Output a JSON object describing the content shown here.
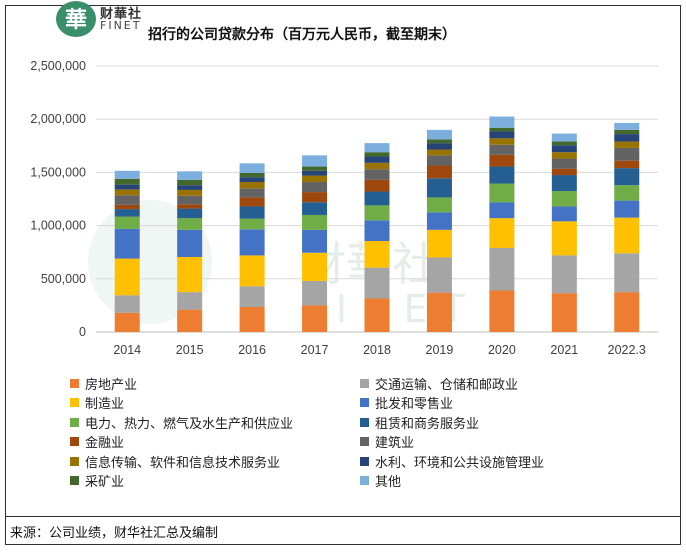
{
  "header": {
    "brand_cn": "财華社",
    "brand_en": "FINET",
    "logo_char": "華",
    "title": "招行的公司贷款分布（百万元人民币，截至期末）"
  },
  "watermark": {
    "cn": "財華社",
    "en": "FINET"
  },
  "footer": {
    "source": "来源：公司业绩，财华社汇总及编制"
  },
  "colors": {
    "series": [
      "#ED7D31",
      "#A5A5A5",
      "#FFC000",
      "#4472C4",
      "#70AD47",
      "#255E91",
      "#9E480E",
      "#636363",
      "#997300",
      "#264478",
      "#43682B",
      "#7CAFDD"
    ]
  },
  "chart_data": {
    "type": "bar",
    "stacked": true,
    "title": "招行的公司贷款分布（百万元人民币，截至期末）",
    "categories": [
      "2014",
      "2015",
      "2016",
      "2017",
      "2018",
      "2019",
      "2020",
      "2021",
      "2022.3"
    ],
    "ylim": [
      0,
      2500000
    ],
    "yticks": [
      "0",
      "500,000",
      "1,000,000",
      "1,500,000",
      "2,000,000",
      "2,500,000"
    ],
    "ytick_values": [
      0,
      500000,
      1000000,
      1500000,
      2000000,
      2500000
    ],
    "grid": true,
    "legend_position": "bottom",
    "series": [
      {
        "name": "房地产业",
        "values": [
          180000,
          210000,
          235000,
          250000,
          315000,
          370000,
          390000,
          365000,
          375000
        ]
      },
      {
        "name": "交通运输、仓储和邮政业",
        "values": [
          165000,
          165000,
          195000,
          230000,
          290000,
          330000,
          400000,
          355000,
          365000
        ]
      },
      {
        "name": "制造业",
        "values": [
          345000,
          330000,
          290000,
          265000,
          250000,
          260000,
          280000,
          320000,
          335000
        ]
      },
      {
        "name": "批发和零售业",
        "values": [
          280000,
          255000,
          245000,
          215000,
          195000,
          165000,
          150000,
          140000,
          160000
        ]
      },
      {
        "name": "电力、热力、燃气及水生产和供应业",
        "values": [
          115000,
          110000,
          100000,
          140000,
          140000,
          140000,
          175000,
          145000,
          145000
        ]
      },
      {
        "name": "租赁和商务服务业",
        "values": [
          70000,
          90000,
          115000,
          120000,
          130000,
          180000,
          160000,
          150000,
          160000
        ]
      },
      {
        "name": "金融业",
        "values": [
          40000,
          40000,
          85000,
          95000,
          110000,
          120000,
          110000,
          60000,
          70000
        ]
      },
      {
        "name": "建筑业",
        "values": [
          90000,
          80000,
          85000,
          95000,
          100000,
          95000,
          95000,
          95000,
          120000
        ]
      },
      {
        "name": "信息传输、软件和信息技术服务业",
        "values": [
          55000,
          55000,
          60000,
          60000,
          60000,
          55000,
          60000,
          60000,
          60000
        ]
      },
      {
        "name": "水利、环境和公共设施管理业",
        "values": [
          45000,
          45000,
          45000,
          45000,
          60000,
          60000,
          65000,
          65000,
          70000
        ]
      },
      {
        "name": "采矿业",
        "values": [
          55000,
          50000,
          40000,
          40000,
          40000,
          35000,
          35000,
          35000,
          40000
        ]
      },
      {
        "name": "其他",
        "values": [
          75000,
          80000,
          90000,
          105000,
          85000,
          90000,
          105000,
          75000,
          65000
        ]
      }
    ]
  }
}
